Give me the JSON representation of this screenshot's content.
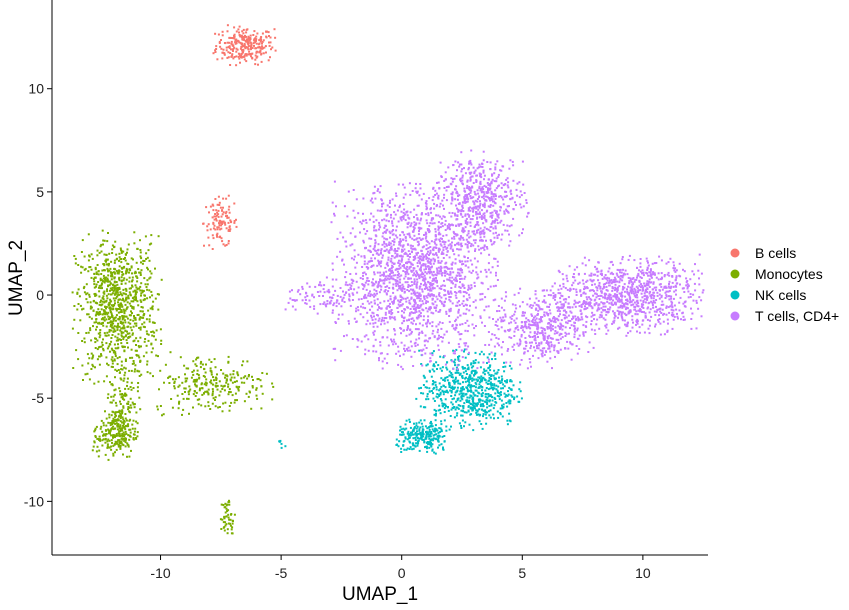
{
  "chart_data": {
    "type": "scatter",
    "xlabel": "UMAP_1",
    "ylabel": "UMAP_2",
    "xlim": [
      -14.5,
      12.7
    ],
    "ylim": [
      -12.6,
      14.3
    ],
    "xticks": [
      -10,
      -5,
      0,
      5,
      10
    ],
    "yticks": [
      -10,
      -5,
      0,
      5,
      10
    ],
    "grid": false,
    "legend_position": "right",
    "series": [
      {
        "name": "B cells",
        "color": "#F8766D",
        "clusters": [
          {
            "center": [
              -6.5,
              12.1
            ],
            "spread": [
              0.6,
              0.45
            ],
            "n": 260
          },
          {
            "center": [
              -7.5,
              3.5
            ],
            "spread": [
              0.35,
              0.6
            ],
            "n": 110
          }
        ]
      },
      {
        "name": "Monocytes",
        "color": "#7CAE00",
        "clusters": [
          {
            "center": [
              -11.8,
              -0.6
            ],
            "spread": [
              0.85,
              1.7
            ],
            "n": 900
          },
          {
            "center": [
              -11.6,
              -5.0
            ],
            "spread": [
              0.35,
              0.9
            ],
            "n": 120
          },
          {
            "center": [
              -11.9,
              -6.8
            ],
            "spread": [
              0.45,
              0.55
            ],
            "n": 220
          },
          {
            "center": [
              -7.9,
              -4.3
            ],
            "spread": [
              1.2,
              0.7
            ],
            "n": 260
          },
          {
            "center": [
              -7.2,
              -10.8
            ],
            "spread": [
              0.15,
              0.5
            ],
            "n": 50
          }
        ]
      },
      {
        "name": "NK cells",
        "color": "#00BFC4",
        "clusters": [
          {
            "center": [
              2.8,
              -4.6
            ],
            "spread": [
              1.0,
              0.9
            ],
            "n": 650
          },
          {
            "center": [
              0.9,
              -6.9
            ],
            "spread": [
              0.55,
              0.4
            ],
            "n": 230
          },
          {
            "center": [
              -5.0,
              -7.2
            ],
            "spread": [
              0.1,
              0.1
            ],
            "n": 6
          }
        ]
      },
      {
        "name": "T cells, CD4+",
        "color": "#C77CFF",
        "clusters": [
          {
            "center": [
              0.6,
              1.0
            ],
            "spread": [
              1.6,
              2.1
            ],
            "n": 1800
          },
          {
            "center": [
              3.3,
              4.6
            ],
            "spread": [
              0.9,
              1.1
            ],
            "n": 500
          },
          {
            "center": [
              9.3,
              0.0
            ],
            "spread": [
              1.5,
              0.9
            ],
            "n": 900
          },
          {
            "center": [
              5.8,
              -1.6
            ],
            "spread": [
              1.0,
              0.9
            ],
            "n": 450
          },
          {
            "center": [
              -3.4,
              -0.1
            ],
            "spread": [
              0.7,
              0.45
            ],
            "n": 90
          }
        ]
      }
    ]
  }
}
